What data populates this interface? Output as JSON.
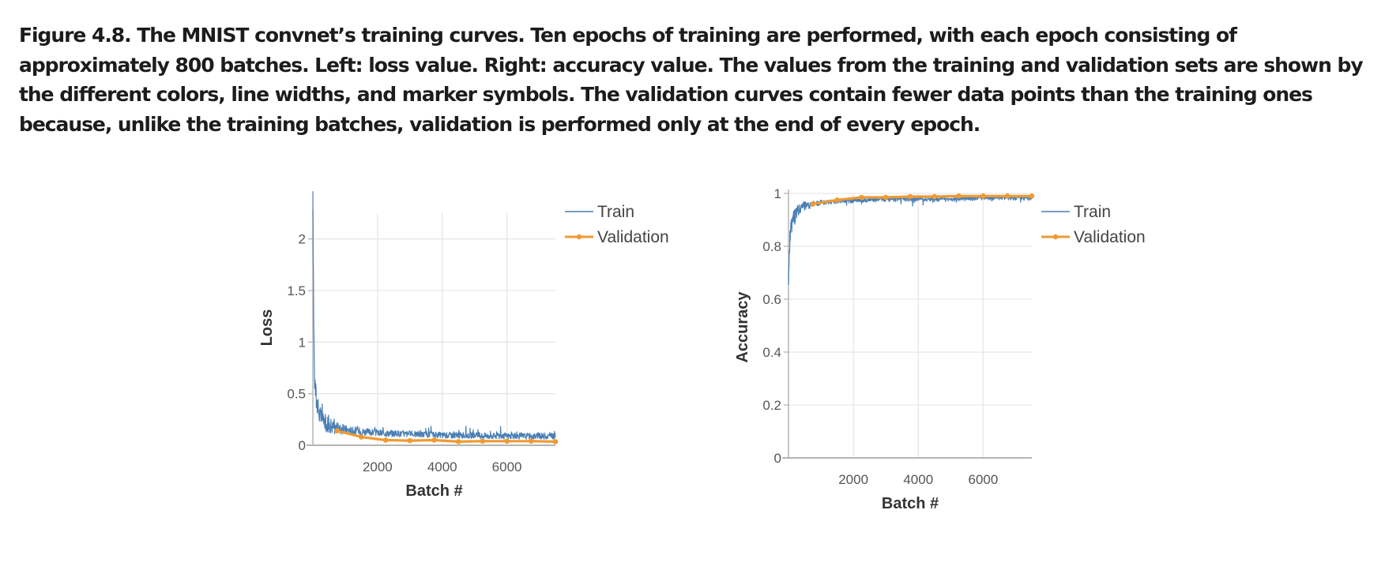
{
  "caption": "Figure 4.8. The MNIST convnet’s training curves. Ten epochs of training are performed, with each epoch consisting of approximately 800 batches. Left: loss value. Right: accuracy value. The values from the training and validation sets are shown by the different colors, line widths, and marker symbols. The validation curves contain fewer data points than the training ones because, unlike the training batches, validation is performed only at the end of every epoch.",
  "colors": {
    "train": "#4a7fb5",
    "validation": "#ef9a32",
    "grid": "#e6e6e6",
    "axis": "#b5b5b5"
  },
  "chart_data": [
    {
      "type": "line",
      "title": "",
      "xlabel": "Batch #",
      "ylabel": "Loss",
      "xlim": [
        0,
        7500
      ],
      "ylim": [
        0,
        2.25
      ],
      "xticks": [
        2000,
        4000,
        6000
      ],
      "xtick_labels": [
        "2000",
        "4000",
        "6000"
      ],
      "yticks": [
        0,
        0.5,
        1,
        1.5,
        2
      ],
      "ytick_labels": [
        "0",
        "0.5",
        "1",
        "1.5",
        "2"
      ],
      "grid": true,
      "legend": "outside-right",
      "series": [
        {
          "name": "Train",
          "x": [
            0,
            25,
            50,
            100,
            150,
            200,
            300,
            400,
            500,
            700,
            900,
            1200,
            1600,
            2000,
            3000,
            4000,
            5000,
            6000,
            7000,
            7500
          ],
          "values": [
            2.3,
            1.2,
            0.62,
            0.42,
            0.33,
            0.27,
            0.22,
            0.19,
            0.17,
            0.15,
            0.14,
            0.13,
            0.12,
            0.11,
            0.1,
            0.09,
            0.085,
            0.08,
            0.08,
            0.08
          ]
        },
        {
          "name": "Validation",
          "x": [
            750,
            1500,
            2250,
            3000,
            3750,
            4500,
            5250,
            6000,
            6750,
            7500
          ],
          "values": [
            0.14,
            0.08,
            0.05,
            0.045,
            0.05,
            0.035,
            0.04,
            0.04,
            0.04,
            0.035
          ]
        }
      ]
    },
    {
      "type": "line",
      "title": "",
      "xlabel": "Batch #",
      "ylabel": "Accuracy",
      "xlim": [
        0,
        7500
      ],
      "ylim": [
        0,
        1
      ],
      "xticks": [
        2000,
        4000,
        6000
      ],
      "xtick_labels": [
        "2000",
        "4000",
        "6000"
      ],
      "yticks": [
        0,
        0.2,
        0.4,
        0.6,
        0.8,
        1
      ],
      "ytick_labels": [
        "0",
        "0.2",
        "0.4",
        "0.6",
        "0.8",
        "1"
      ],
      "grid": true,
      "legend": "outside-right",
      "series": [
        {
          "name": "Train",
          "x": [
            0,
            25,
            50,
            100,
            150,
            200,
            300,
            400,
            500,
            700,
            900,
            1200,
            1600,
            2000,
            3000,
            4000,
            5000,
            6000,
            7000,
            7500
          ],
          "values": [
            0.7,
            0.8,
            0.88,
            0.92,
            0.94,
            0.95,
            0.96,
            0.965,
            0.97,
            0.97,
            0.975,
            0.975,
            0.98,
            0.98,
            0.985,
            0.985,
            0.985,
            0.99,
            0.99,
            0.99
          ]
        },
        {
          "name": "Validation",
          "x": [
            750,
            1500,
            2250,
            3000,
            3750,
            4500,
            5250,
            6000,
            6750,
            7500
          ],
          "values": [
            0.96,
            0.975,
            0.985,
            0.985,
            0.988,
            0.988,
            0.99,
            0.99,
            0.99,
            0.99
          ]
        }
      ]
    }
  ]
}
